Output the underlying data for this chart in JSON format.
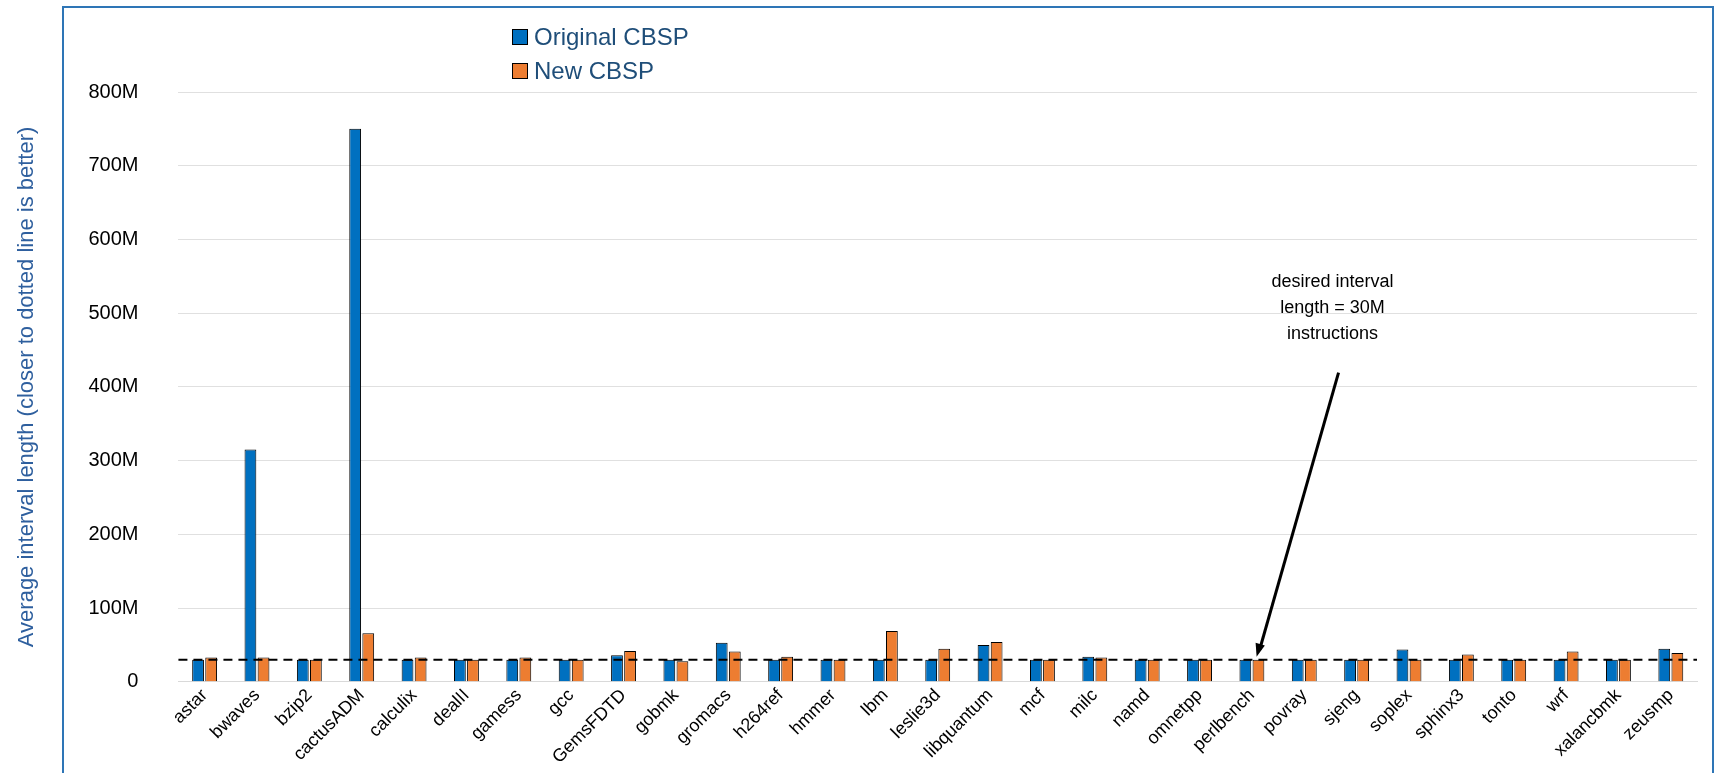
{
  "chart_data": {
    "type": "bar",
    "ylabel": "Average interval length (closer to dotted line is better)",
    "categories": [
      "astar",
      "bwaves",
      "bzip2",
      "cactusADM",
      "calculix",
      "dealII",
      "gamess",
      "gcc",
      "GemsFDTD",
      "gobmk",
      "gromacs",
      "h264ref",
      "hmmer",
      "lbm",
      "leslie3d",
      "libquantum",
      "mcf",
      "milc",
      "namd",
      "omnetpp",
      "perlbench",
      "povray",
      "sjeng",
      "soplex",
      "sphinx3",
      "tonto",
      "wrf",
      "xalancbmk",
      "zeusmp"
    ],
    "series": [
      {
        "name": "Original CBSP",
        "color": "#0070c0",
        "values": [
          30,
          315,
          30,
          750,
          30,
          30,
          30,
          30,
          36,
          30,
          53,
          30,
          30,
          30,
          30,
          50,
          30,
          34,
          30,
          30,
          30,
          30,
          30,
          44,
          30,
          30,
          30,
          30,
          45
        ]
      },
      {
        "name": "New CBSP",
        "color": "#ed7d31",
        "values": [
          33,
          33,
          30,
          66,
          33,
          30,
          33,
          30,
          42,
          28,
          41,
          34,
          30,
          69,
          45,
          54,
          30,
          33,
          30,
          30,
          30,
          30,
          30,
          30,
          37,
          30,
          41,
          30,
          39
        ]
      }
    ],
    "ylim": [
      0,
      800
    ],
    "yticks": [
      0,
      {
        "value": 100,
        "label": "100M"
      },
      {
        "value": 200,
        "label": "200M"
      },
      {
        "value": 300,
        "label": "300M"
      },
      {
        "value": 400,
        "label": "400M"
      },
      {
        "value": 500,
        "label": "500M"
      },
      {
        "value": 600,
        "label": "600M"
      },
      {
        "value": 700,
        "label": "700M"
      },
      {
        "value": 800,
        "label": "800M"
      }
    ],
    "grid": "y",
    "legend": "top",
    "ref_lines": [
      {
        "axis": "y",
        "value": 30,
        "color": "#000000",
        "line_style": "dashed"
      }
    ],
    "annotations": [
      "desired interval\nlength = 30M\ninstructions"
    ]
  }
}
